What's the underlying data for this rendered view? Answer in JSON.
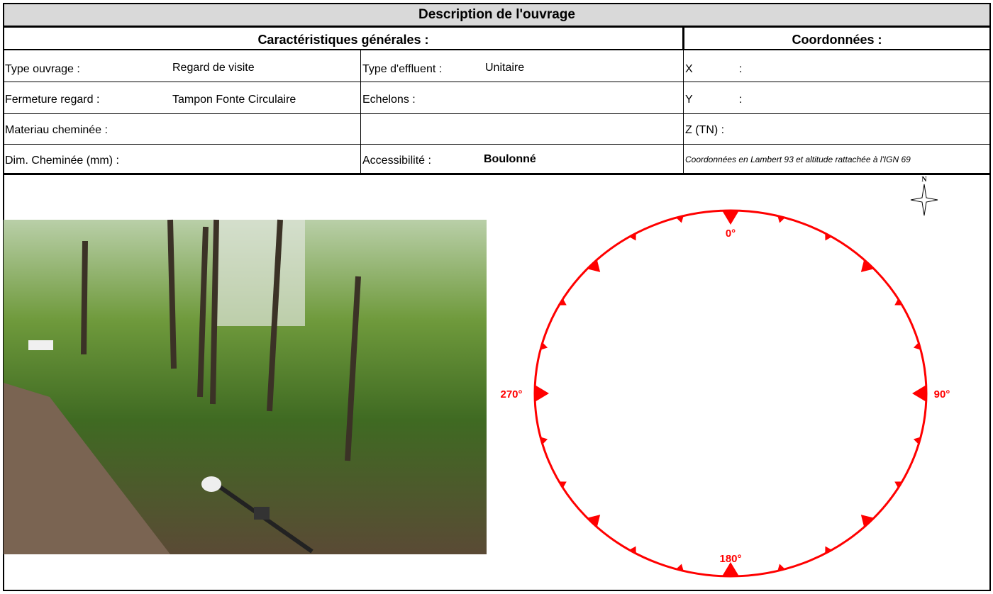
{
  "header": {
    "title": "Description de l'ouvrage"
  },
  "sections": {
    "general": "Caractéristiques générales :",
    "coordinates": "Coordonnées :"
  },
  "fields": {
    "type_ouvrage": {
      "label": "Type ouvrage :",
      "value": "Regard de visite"
    },
    "type_effluent": {
      "label": "Type d'effluent :",
      "value": "Unitaire"
    },
    "fermeture": {
      "label": "Fermeture regard :",
      "value": "Tampon Fonte Circulaire"
    },
    "echelons": {
      "label": "Echelons :"
    },
    "materiau": {
      "label": "Materiau cheminée :"
    },
    "dim": {
      "label": "Dim. Cheminée (mm) :"
    },
    "accessibilite": {
      "label": "Accessibilité :",
      "value": "Boulonné"
    },
    "x": {
      "label": "X",
      "sep": ":"
    },
    "y": {
      "label": "Y",
      "sep": ":"
    },
    "z": {
      "label": "Z (TN) :"
    },
    "note": "Coordonnées en Lambert 93 et altitude rattachée à l'IGN 69"
  },
  "compass": {
    "north": "N",
    "labels": [
      "0°",
      "90°",
      "180°",
      "270°"
    ]
  }
}
